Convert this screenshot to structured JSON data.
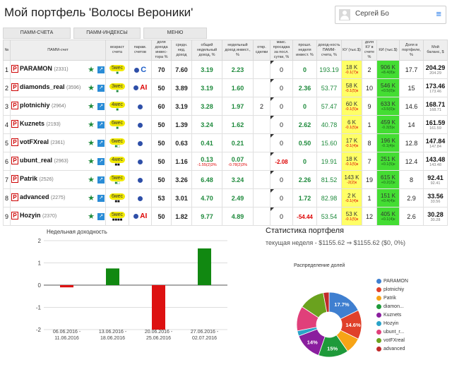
{
  "header": {
    "title": "Мой портфель 'Волосы Вероники'",
    "user_name": "Сергей Бо",
    "menu_icon": "hamburger-icon"
  },
  "tabs": [
    {
      "label": "ПАММ-СЧЕТА"
    },
    {
      "label": "ПАММ-ИНДЕКСЫ"
    },
    {
      "label": "МЕНЮ"
    }
  ],
  "table": {
    "headers": [
      "№",
      "ПАММ-счет",
      "возраст счета",
      "парам. счетов",
      "доля дохода инвес-тора %",
      "средн. нед. доход",
      "общий недельный доход, %",
      "недельный доход инвест., %",
      "откр. сделки",
      "макс. просадка за посл. сутки, %",
      "прошл. неделя инвест. %",
      "доход-ность ПАММ-счета, %",
      "КУ (тыс.$)",
      "доля КУ в счете %",
      "КИ (тыс.$)",
      "Доля в портфеле, %",
      "Мой баланс, $"
    ],
    "rows": [
      {
        "n": "1",
        "name": "PARAMON",
        "id": "(2331)",
        "age": "5мес",
        "age_sq": "■",
        "age_sq_color": "g",
        "medal": true,
        "param": "C",
        "share": "70",
        "avg": "7.60",
        "total": "3.19",
        "total_sub": "",
        "invest": "2.23",
        "invest_sub": "",
        "deals": "",
        "dd": "0",
        "prev": "0",
        "yield": "193.19",
        "ku": "18 K",
        "ku_sub": "-0.1(7)к",
        "ku_share": "2",
        "ki": "906 K",
        "ki_sub": "+8.4(8)к",
        "portf": "17.7",
        "bal": "204.29",
        "bal_sub": "204.29"
      },
      {
        "n": "2",
        "name": "diamonds_real",
        "id": "(3596)",
        "age": "3мес",
        "age_sq": "■",
        "age_sq_color": "g",
        "medal": true,
        "param": "AI",
        "share": "50",
        "avg": "3.89",
        "total": "3.19",
        "total_sub": "",
        "invest": "1.60",
        "invest_sub": "",
        "deals": "",
        "dd": "0",
        "prev": "2.36",
        "yield": "53.77",
        "ku": "58 K",
        "ku_sub": "-0.1(5)к",
        "ku_share": "10",
        "ki": "546 K",
        "ki_sub": "+0.5(0)к",
        "portf": "15",
        "bal": "173.46",
        "bal_sub": "173.46"
      },
      {
        "n": "3",
        "name": "plotnichiy",
        "id": "(2964)",
        "age": "4мес",
        "age_sq": "■",
        "age_sq_color": "g",
        "medal": true,
        "param": "",
        "share": "60",
        "avg": "3.19",
        "total": "3.28",
        "total_sub": "",
        "invest": "1.97",
        "invest_sub": "",
        "deals": "2",
        "dd": "0",
        "prev": "0",
        "yield": "57.47",
        "ku": "60 K",
        "ku_sub": "-0.1(5)к",
        "ku_share": "9",
        "ki": "633 K",
        "ki_sub": "+3.5(0)к",
        "portf": "14.6",
        "bal": "168.71",
        "bal_sub": "168.71"
      },
      {
        "n": "4",
        "name": "Kuznets",
        "id": "(2193)",
        "age": "6мес",
        "age_sq": "■",
        "age_sq_color": "g",
        "medal": true,
        "param": "",
        "share": "50",
        "avg": "1.39",
        "total": "3.24",
        "total_sub": "",
        "invest": "1.62",
        "invest_sub": "",
        "deals": "",
        "dd": "0",
        "prev": "2.62",
        "yield": "40.78",
        "ku": "6 K",
        "ku_sub": "-0.1(5)к",
        "ku_share": "1",
        "ki": "459 K",
        "ki_sub": "-0.3(5)к",
        "portf": "14",
        "bal": "161.59",
        "bal_sub": "161.59"
      },
      {
        "n": "5",
        "name": "votFXreal",
        "id": "(2361)",
        "age": "6мес",
        "age_sq": "■□",
        "age_sq_color": "g",
        "medal": true,
        "param": "",
        "share": "50",
        "avg": "0.63",
        "total": "0.41",
        "total_sub": "",
        "invest": "0.21",
        "invest_sub": "",
        "deals": "",
        "dd": "0",
        "prev": "0.50",
        "yield": "15.60",
        "ku": "17 K",
        "ku_sub": "-0.1(4)к",
        "ku_share": "8",
        "ki": "196 K",
        "ki_sub": "-0.1(4)к",
        "portf": "12.8",
        "bal": "147.84",
        "bal_sub": "147.84"
      },
      {
        "n": "6",
        "name": "ubunt_real",
        "id": "(2963)",
        "age": "4мес",
        "age_sq": "■■",
        "age_sq_color": "k",
        "medal": true,
        "param": "",
        "share": "50",
        "avg": "1.16",
        "total": "0.13",
        "total_sub": "-1.55(2)3%",
        "invest": "0.07",
        "invest_sub": "-0.78(2)3%",
        "deals": "",
        "dd": "-2.08",
        "prev": "0",
        "yield": "19.91",
        "ku": "18 K",
        "ku_sub": "-0.1(5)к",
        "ku_share": "7",
        "ki": "251 K",
        "ki_sub": "+0.1(5)к",
        "portf": "12.4",
        "bal": "143.48",
        "bal_sub": "143.48"
      },
      {
        "n": "7",
        "name": "Patrik",
        "id": "(2526)",
        "age": "5мес",
        "age_sq": "■□",
        "age_sq_color": "g",
        "medal": true,
        "param": "",
        "share": "50",
        "avg": "3.26",
        "total": "6.48",
        "total_sub": "",
        "invest": "3.24",
        "invest_sub": "",
        "deals": "",
        "dd": "0",
        "prev": "2.26",
        "yield": "81.52",
        "ku": "143 K",
        "ku_sub": "-2(2)к",
        "ku_share": "19",
        "ki": "615 K",
        "ki_sub": "+0.2(2)к",
        "portf": "8",
        "bal": "92.41",
        "bal_sub": "92.41"
      },
      {
        "n": "8",
        "name": "advanced",
        "id": "(2275)",
        "age": "6мес",
        "age_sq": "■■",
        "age_sq_color": "k",
        "medal": true,
        "param": "",
        "share": "53",
        "avg": "3.01",
        "total": "4.70",
        "total_sub": "",
        "invest": "2.49",
        "invest_sub": "",
        "deals": "",
        "dd": "0",
        "prev": "1.72",
        "yield": "82.98",
        "ku": "2 K",
        "ku_sub": "-0.1(4)к",
        "ku_share": "1",
        "ki": "151 K",
        "ki_sub": "+0.4(4)к",
        "portf": "2.9",
        "bal": "33.56",
        "bal_sub": "33.56"
      },
      {
        "n": "9",
        "name": "Hozyin",
        "id": "(2370)",
        "age": "5мес",
        "age_sq": "■■■■",
        "age_sq_color": "k",
        "medal": true,
        "param": "AI",
        "share": "50",
        "avg": "1.82",
        "total": "9.77",
        "total_sub": "",
        "invest": "4.89",
        "invest_sub": "",
        "deals": "",
        "dd": "0",
        "prev": "-54.44",
        "yield": "53.54",
        "ku": "53 K",
        "ku_sub": "-0.1(5)к",
        "ku_share": "12",
        "ki": "405 K",
        "ki_sub": "+0.1(4)к",
        "portf": "2.6",
        "bal": "30.28",
        "bal_sub": "30.28"
      }
    ]
  },
  "stats": {
    "title": "Статистика портфеля",
    "week": "текущая неделя - $1155.62 ⇒ $1155.62 ($0, 0%)"
  },
  "chart_data": [
    {
      "type": "bar",
      "title": "Недельная доходность",
      "categories": [
        "06.06.2016 - 11.06.2016",
        "13.06.2016 - 18.06.2016",
        "20.06.2016 - 25.06.2016",
        "27.06.2016 - 02.07.2016"
      ],
      "values": [
        -0.1,
        0.75,
        -2.0,
        1.65
      ],
      "colors": [
        "#dd1111",
        "#118811",
        "#dd1111",
        "#118811"
      ],
      "yticks": [
        -2,
        -1,
        0,
        1,
        2
      ],
      "ylim": [
        -2,
        2
      ],
      "grid": true,
      "xlabel": "",
      "ylabel": ""
    },
    {
      "type": "pie",
      "title": "Распределение долей",
      "labels": [
        "PARAMON",
        "plotnichiy",
        "Patrik",
        "diamon...",
        "Kuznets",
        "Hozyin",
        "ubunt_r...",
        "votFXreal",
        "advanced"
      ],
      "legend_labels": [
        "PARAMON",
        "plotnichiy",
        "Patrik",
        "diamon...",
        "Kuznets",
        "Hozyin",
        "ubunt_r...",
        "votFXreal",
        "advanced"
      ],
      "values": [
        17.7,
        14.6,
        8,
        15,
        14,
        2.6,
        12.4,
        12.8,
        2.9
      ],
      "data_labels": [
        "17.7%",
        "14.6%",
        "",
        "15%",
        "14%",
        "",
        "",
        "",
        ""
      ],
      "colors": [
        "#3f7fd0",
        "#e0402a",
        "#f7a416",
        "#1e9a3a",
        "#8a1e9e",
        "#2aa3c8",
        "#e0407a",
        "#6aa21e",
        "#c02a2a"
      ],
      "legend": "right",
      "donut": true
    }
  ]
}
